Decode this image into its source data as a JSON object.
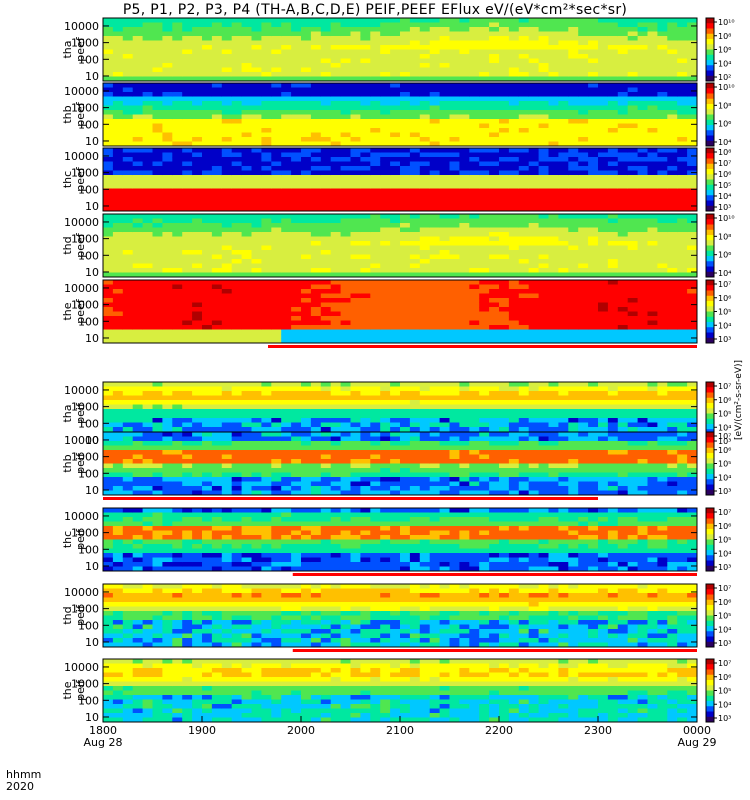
{
  "title": "P5, P1, P2, P3, P4 (TH-A,B,C,D,E) PEIF,PEEF EFlux eV/(eV*cm²*sec*sr)",
  "colors": {
    "colormap": [
      "#2a0060",
      "#0000c8",
      "#0050ff",
      "#00c8ff",
      "#00e8a0",
      "#50e650",
      "#d8ee40",
      "#ffff00",
      "#ffc000",
      "#ff6000",
      "#ff0000",
      "#b00000"
    ],
    "trace_line": "#000000",
    "coverage_bar": "#ff0000"
  },
  "x_axis": {
    "ticks": [
      "1800",
      "1900",
      "2000",
      "2100",
      "2200",
      "2300",
      "0000"
    ],
    "date_labels": [
      {
        "at": "1800",
        "text": "Aug 28"
      },
      {
        "at": "0000",
        "text": "Aug 29"
      }
    ],
    "row_label_top": "hhmm",
    "row_label_bottom": "2020"
  },
  "colorbar_unit": "[eV/(cm²-s-sr-eV)]",
  "chart_data": {
    "type": "heatmap",
    "title": "P5, P1, P2, P3, P4 (TH-A,B,C,D,E) PEIF,PEEF EFlux eV/(eV*cm²*sec*sr)",
    "x_range": [
      "1800",
      "0000"
    ],
    "y_scale": "log",
    "y_range_eV": [
      5,
      30000
    ],
    "y_ticks": [
      "10",
      "100",
      "1000",
      "10000"
    ],
    "panels": [
      {
        "label": "tha\npeef",
        "colorbar_ticks": [
          "10¹⁰",
          "10⁸",
          "10⁶",
          "10⁴",
          "10²"
        ],
        "coverage": []
      },
      {
        "label": "thb\npeef",
        "colorbar_ticks": [
          "10¹⁰",
          "10⁸",
          "10⁶",
          "10⁴"
        ],
        "coverage": []
      },
      {
        "label": "thc\npeef",
        "colorbar_ticks": [
          "10⁸",
          "10⁷",
          "10⁶",
          "10⁵",
          "10⁴",
          "10³"
        ],
        "coverage": []
      },
      {
        "label": "thd\npeef",
        "colorbar_ticks": [
          "10¹⁰",
          "10⁸",
          "10⁶",
          "10⁴"
        ],
        "coverage": []
      },
      {
        "label": "the\npeef",
        "colorbar_ticks": [
          "10⁷",
          "10⁶",
          "10⁵",
          "10⁴",
          "10³"
        ],
        "coverage": [
          [
            "1940",
            "0000"
          ]
        ]
      },
      {
        "label": "tha\npeif",
        "colorbar_ticks": [
          "10⁷",
          "10⁶",
          "10⁵",
          "10⁴",
          "10³"
        ],
        "coverage": [
          [
            "1800",
            "2300"
          ]
        ]
      },
      {
        "label": "thb\npeif",
        "colorbar_ticks": [
          "10⁷",
          "10⁶",
          "10⁵",
          "10⁴",
          "10³"
        ],
        "coverage": [
          [
            "1800",
            "2300"
          ]
        ]
      },
      {
        "label": "thc\npeif",
        "colorbar_ticks": [
          "10⁷",
          "10⁶",
          "10⁵",
          "10⁴",
          "10³"
        ],
        "coverage": [
          [
            "1955",
            "0000"
          ]
        ]
      },
      {
        "label": "thd\npeif",
        "colorbar_ticks": [
          "10⁷",
          "10⁶",
          "10⁵",
          "10⁴",
          "10³"
        ],
        "coverage": [
          [
            "1955",
            "0000"
          ]
        ]
      },
      {
        "label": "the\npeif",
        "colorbar_ticks": [
          "10⁷",
          "10⁶",
          "10⁵",
          "10⁴",
          "10³"
        ],
        "coverage": []
      }
    ]
  }
}
